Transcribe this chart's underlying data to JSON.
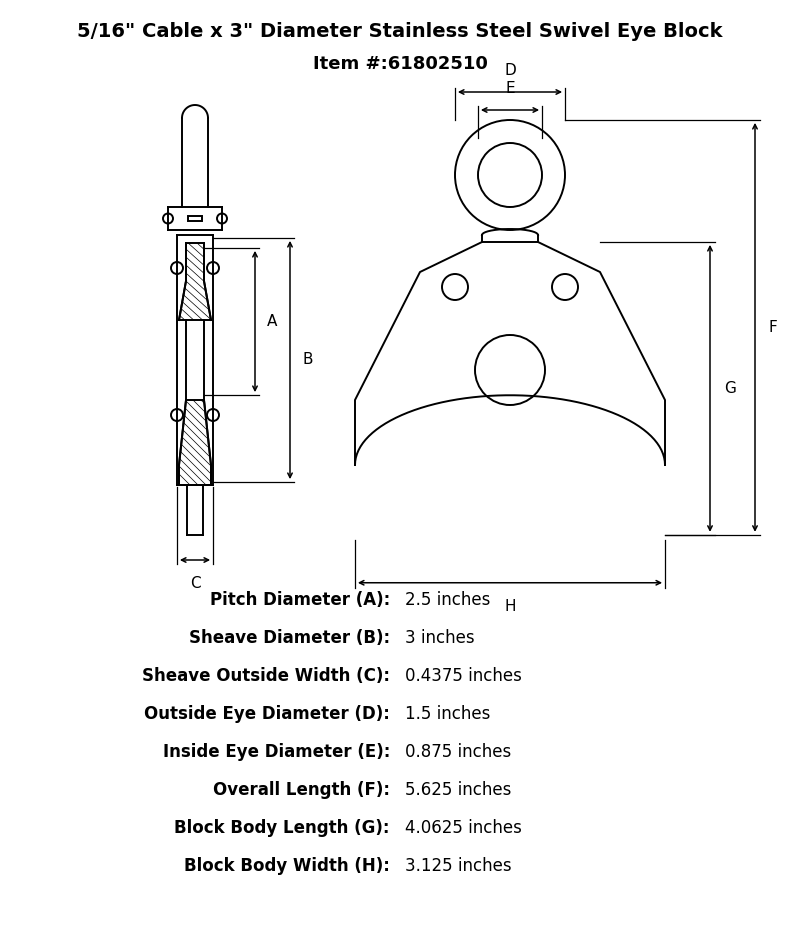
{
  "title_line1": "5/16\" Cable x 3\" Diameter Stainless Steel Swivel Eye Block",
  "title_line2": "Item #:61802510",
  "bg_color": "#ffffff",
  "line_color": "#000000",
  "specs": [
    {
      "label": "Pitch Diameter (A):",
      "value": "2.5 inches"
    },
    {
      "label": "Sheave Diameter (B):",
      "value": "3 inches"
    },
    {
      "label": "Sheave Outside Width (C):",
      "value": "0.4375 inches"
    },
    {
      "label": "Outside Eye Diameter (D):",
      "value": "1.5 inches"
    },
    {
      "label": "Inside Eye Diameter (E):",
      "value": "0.875 inches"
    },
    {
      "label": "Overall Length (F):",
      "value": "5.625 inches"
    },
    {
      "label": "Block Body Length (G):",
      "value": "4.0625 inches"
    },
    {
      "label": "Block Body Width (H):",
      "value": "3.125 inches"
    }
  ]
}
